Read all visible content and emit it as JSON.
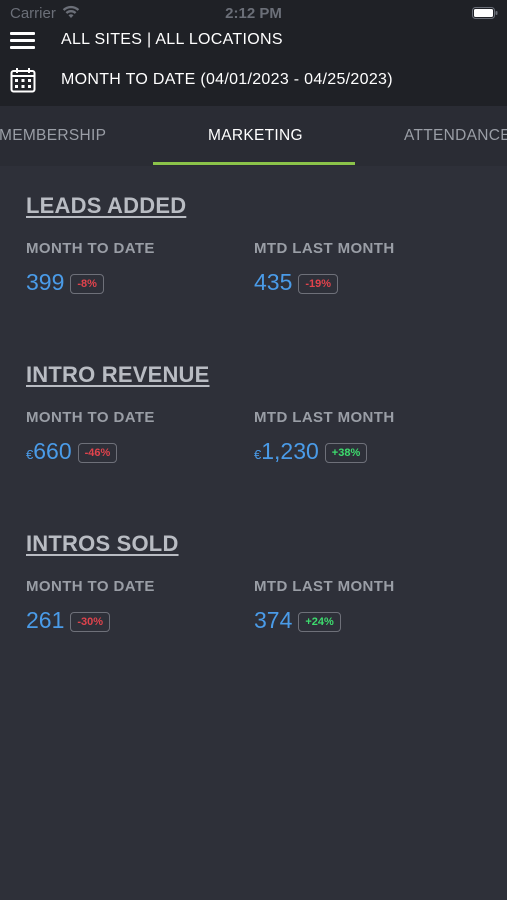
{
  "status_bar": {
    "carrier": "Carrier",
    "time": "2:12 PM"
  },
  "header": {
    "sites": "ALL SITES | ALL LOCATIONS",
    "date_range": "MONTH TO DATE (04/01/2023 - 04/25/2023)"
  },
  "tabs": [
    {
      "label": "MEMBERSHIP",
      "active": false
    },
    {
      "label": "MARKETING",
      "active": true
    },
    {
      "label": "ATTENDANCE",
      "active": false
    }
  ],
  "colors": {
    "accent_underline": "#8bc34a",
    "value_blue": "#4a9be8",
    "negative_red": "#e0434c",
    "positive_green": "#3ddc6e"
  },
  "sections": [
    {
      "title": "LEADS ADDED",
      "mtd_label": "MONTH TO DATE",
      "last_label": "MTD LAST MONTH",
      "mtd": {
        "currency": "",
        "value": "399",
        "change": "-8%",
        "trend": "negative"
      },
      "last": {
        "currency": "",
        "value": "435",
        "change": "-19%",
        "trend": "negative"
      }
    },
    {
      "title": "INTRO REVENUE",
      "mtd_label": "MONTH TO DATE",
      "last_label": "MTD LAST MONTH",
      "mtd": {
        "currency": "€",
        "value": "660",
        "change": "-46%",
        "trend": "negative"
      },
      "last": {
        "currency": "€",
        "value": "1,230",
        "change": "+38%",
        "trend": "positive"
      }
    },
    {
      "title": "INTROS SOLD",
      "mtd_label": "MONTH TO DATE",
      "last_label": "MTD LAST MONTH",
      "mtd": {
        "currency": "",
        "value": "261",
        "change": "-30%",
        "trend": "negative"
      },
      "last": {
        "currency": "",
        "value": "374",
        "change": "+24%",
        "trend": "positive"
      }
    }
  ]
}
